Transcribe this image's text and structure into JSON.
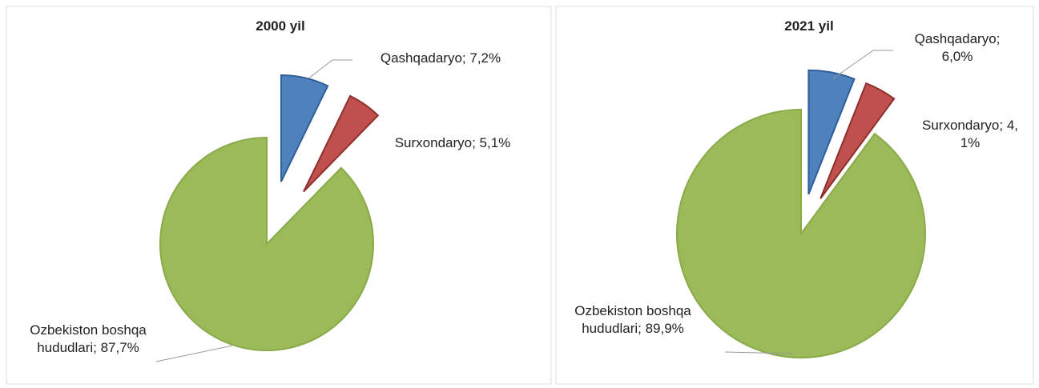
{
  "chart_data": [
    {
      "type": "pie",
      "title": "2000 yil",
      "values": [
        7.2,
        5.1,
        87.7
      ],
      "value_labels": [
        "Qashqadaryo; 7,2%",
        "Surxondaryo; 5,1%",
        "Ozbekiston boshqa hududlari; 87,7%"
      ],
      "colors": [
        "#4f81bd",
        "#c0504d",
        "#9bbb59"
      ]
    },
    {
      "type": "pie",
      "title": "2021 yil",
      "values": [
        6.0,
        4.1,
        89.9
      ],
      "value_labels": [
        "Qashqadaryo; 6,0%",
        "Surxondaryo; 4,1%",
        "Ozbekiston boshqa hududlari; 89,9%"
      ],
      "colors": [
        "#4f81bd",
        "#c0504d",
        "#9bbb59"
      ]
    }
  ]
}
